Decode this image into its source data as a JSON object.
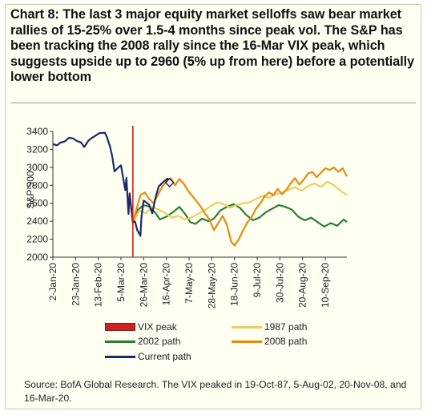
{
  "title": "Chart 8: The last 3 major equity market selloffs saw bear market rallies of 15-25% over 1.5-4 months since peak vol. The S&P has been tracking the 2008 rally since the 16-Mar VIX peak, which suggests upside up to 2960 (5% up from here) before a potentially lower bottom",
  "source": "Source: BofA Global Research. The VIX peaked in 19-Oct-87, 5-Aug-02, 20-Nov-08, and 16-Mar-20.",
  "chart_data": {
    "type": "line",
    "ylabel": "S&P 500",
    "ylim": [
      2000,
      3400
    ],
    "yticks": [
      2000,
      2200,
      2400,
      2600,
      2800,
      3000,
      3200,
      3400
    ],
    "xlim": [
      "2020-01-02",
      "2020-09-30"
    ],
    "xticks": [
      "2-Jan-20",
      "23-Jan-20",
      "13-Feb-20",
      "5-Mar-20",
      "26-Mar-20",
      "16-Apr-20",
      "7-May-20",
      "28-May-20",
      "18-Jun-20",
      "9-Jul-20",
      "30-Jul-20",
      "20-Aug-20",
      "10-Sep-20"
    ],
    "vix_peak": "2020-03-16",
    "marker": {
      "x": "2020-04-19",
      "y": 2830
    },
    "colors": {
      "vix_peak": "#cc2222",
      "path_1987": "#e8d060",
      "path_2002": "#2e7d32",
      "path_2008": "#e88a10",
      "current": "#1a2a6b"
    },
    "legend": [
      {
        "key": "vix_peak",
        "label": "VIX peak"
      },
      {
        "key": "path_1987",
        "label": "1987 path"
      },
      {
        "key": "path_2002",
        "label": "2002 path"
      },
      {
        "key": "path_2008",
        "label": "2008 path"
      },
      {
        "key": "current",
        "label": "Current path"
      }
    ],
    "series": [
      {
        "key": "current",
        "name": "Current path",
        "points": [
          [
            "2020-01-02",
            3258
          ],
          [
            "2020-01-06",
            3246
          ],
          [
            "2020-01-09",
            3275
          ],
          [
            "2020-01-13",
            3288
          ],
          [
            "2020-01-17",
            3330
          ],
          [
            "2020-01-21",
            3320
          ],
          [
            "2020-01-24",
            3295
          ],
          [
            "2020-01-28",
            3277
          ],
          [
            "2020-01-31",
            3226
          ],
          [
            "2020-02-04",
            3298
          ],
          [
            "2020-02-07",
            3327
          ],
          [
            "2020-02-11",
            3357
          ],
          [
            "2020-02-14",
            3380
          ],
          [
            "2020-02-19",
            3386
          ],
          [
            "2020-02-21",
            3338
          ],
          [
            "2020-02-24",
            3225
          ],
          [
            "2020-02-26",
            3116
          ],
          [
            "2020-02-28",
            2954
          ],
          [
            "2020-03-03",
            3003
          ],
          [
            "2020-03-05",
            3023
          ],
          [
            "2020-03-09",
            2746
          ],
          [
            "2020-03-10",
            2882
          ],
          [
            "2020-03-12",
            2480
          ],
          [
            "2020-03-13",
            2711
          ],
          [
            "2020-03-16",
            2386
          ],
          [
            "2020-03-18",
            2398
          ],
          [
            "2020-03-20",
            2305
          ],
          [
            "2020-03-23",
            2237
          ],
          [
            "2020-03-24",
            2447
          ],
          [
            "2020-03-26",
            2630
          ],
          [
            "2020-03-31",
            2585
          ],
          [
            "2020-04-03",
            2489
          ],
          [
            "2020-04-06",
            2664
          ],
          [
            "2020-04-09",
            2790
          ],
          [
            "2020-04-14",
            2846
          ],
          [
            "2020-04-17",
            2875
          ],
          [
            "2020-04-19",
            2830
          ]
        ]
      },
      {
        "key": "path_2002",
        "name": "2002 path",
        "points": [
          [
            "2020-03-16",
            2386
          ],
          [
            "2020-03-20",
            2520
          ],
          [
            "2020-03-26",
            2580
          ],
          [
            "2020-04-01",
            2560
          ],
          [
            "2020-04-06",
            2490
          ],
          [
            "2020-04-10",
            2420
          ],
          [
            "2020-04-16",
            2450
          ],
          [
            "2020-04-22",
            2500
          ],
          [
            "2020-04-28",
            2560
          ],
          [
            "2020-05-04",
            2470
          ],
          [
            "2020-05-08",
            2390
          ],
          [
            "2020-05-13",
            2370
          ],
          [
            "2020-05-19",
            2430
          ],
          [
            "2020-05-25",
            2400
          ],
          [
            "2020-05-30",
            2430
          ],
          [
            "2020-06-05",
            2520
          ],
          [
            "2020-06-11",
            2560
          ],
          [
            "2020-06-17",
            2590
          ],
          [
            "2020-06-23",
            2550
          ],
          [
            "2020-06-29",
            2470
          ],
          [
            "2020-07-05",
            2410
          ],
          [
            "2020-07-11",
            2440
          ],
          [
            "2020-07-17",
            2500
          ],
          [
            "2020-07-23",
            2540
          ],
          [
            "2020-07-29",
            2580
          ],
          [
            "2020-08-04",
            2560
          ],
          [
            "2020-08-10",
            2530
          ],
          [
            "2020-08-16",
            2450
          ],
          [
            "2020-08-22",
            2410
          ],
          [
            "2020-08-28",
            2440
          ],
          [
            "2020-09-03",
            2390
          ],
          [
            "2020-09-09",
            2340
          ],
          [
            "2020-09-15",
            2380
          ],
          [
            "2020-09-21",
            2350
          ],
          [
            "2020-09-27",
            2420
          ],
          [
            "2020-09-30",
            2390
          ]
        ]
      },
      {
        "key": "path_1987",
        "name": "1987 path",
        "points": [
          [
            "2020-03-16",
            2386
          ],
          [
            "2020-03-22",
            2520
          ],
          [
            "2020-03-28",
            2490
          ],
          [
            "2020-04-03",
            2560
          ],
          [
            "2020-04-09",
            2530
          ],
          [
            "2020-04-15",
            2490
          ],
          [
            "2020-04-21",
            2440
          ],
          [
            "2020-04-27",
            2460
          ],
          [
            "2020-05-03",
            2420
          ],
          [
            "2020-05-09",
            2440
          ],
          [
            "2020-05-15",
            2480
          ],
          [
            "2020-05-21",
            2520
          ],
          [
            "2020-05-27",
            2570
          ],
          [
            "2020-06-02",
            2610
          ],
          [
            "2020-06-08",
            2590
          ],
          [
            "2020-06-14",
            2550
          ],
          [
            "2020-06-20",
            2580
          ],
          [
            "2020-06-26",
            2600
          ],
          [
            "2020-07-02",
            2610
          ],
          [
            "2020-07-08",
            2650
          ],
          [
            "2020-07-14",
            2680
          ],
          [
            "2020-07-20",
            2660
          ],
          [
            "2020-07-26",
            2700
          ],
          [
            "2020-08-01",
            2720
          ],
          [
            "2020-08-07",
            2750
          ],
          [
            "2020-08-13",
            2780
          ],
          [
            "2020-08-19",
            2740
          ],
          [
            "2020-08-25",
            2790
          ],
          [
            "2020-08-31",
            2820
          ],
          [
            "2020-09-06",
            2780
          ],
          [
            "2020-09-12",
            2840
          ],
          [
            "2020-09-18",
            2800
          ],
          [
            "2020-09-24",
            2740
          ],
          [
            "2020-09-30",
            2690
          ]
        ]
      },
      {
        "key": "path_2008",
        "name": "2008 path",
        "points": [
          [
            "2020-03-16",
            2386
          ],
          [
            "2020-03-19",
            2520
          ],
          [
            "2020-03-23",
            2690
          ],
          [
            "2020-03-27",
            2720
          ],
          [
            "2020-03-31",
            2650
          ],
          [
            "2020-04-04",
            2600
          ],
          [
            "2020-04-08",
            2690
          ],
          [
            "2020-04-12",
            2780
          ],
          [
            "2020-04-16",
            2840
          ],
          [
            "2020-04-20",
            2880
          ],
          [
            "2020-04-24",
            2800
          ],
          [
            "2020-04-28",
            2870
          ],
          [
            "2020-05-02",
            2820
          ],
          [
            "2020-05-06",
            2740
          ],
          [
            "2020-05-10",
            2680
          ],
          [
            "2020-05-14",
            2620
          ],
          [
            "2020-05-18",
            2560
          ],
          [
            "2020-05-22",
            2480
          ],
          [
            "2020-05-26",
            2420
          ],
          [
            "2020-05-30",
            2300
          ],
          [
            "2020-06-03",
            2380
          ],
          [
            "2020-06-07",
            2460
          ],
          [
            "2020-06-11",
            2360
          ],
          [
            "2020-06-15",
            2170
          ],
          [
            "2020-06-18",
            2130
          ],
          [
            "2020-06-22",
            2200
          ],
          [
            "2020-06-26",
            2300
          ],
          [
            "2020-06-30",
            2390
          ],
          [
            "2020-07-04",
            2450
          ],
          [
            "2020-07-08",
            2540
          ],
          [
            "2020-07-12",
            2600
          ],
          [
            "2020-07-16",
            2680
          ],
          [
            "2020-07-20",
            2720
          ],
          [
            "2020-07-24",
            2690
          ],
          [
            "2020-07-28",
            2760
          ],
          [
            "2020-08-01",
            2700
          ],
          [
            "2020-08-05",
            2750
          ],
          [
            "2020-08-09",
            2820
          ],
          [
            "2020-08-13",
            2880
          ],
          [
            "2020-08-17",
            2810
          ],
          [
            "2020-08-21",
            2860
          ],
          [
            "2020-08-25",
            2930
          ],
          [
            "2020-08-29",
            2950
          ],
          [
            "2020-09-02",
            2890
          ],
          [
            "2020-09-06",
            2940
          ],
          [
            "2020-09-10",
            2990
          ],
          [
            "2020-09-14",
            2970
          ],
          [
            "2020-09-18",
            3000
          ],
          [
            "2020-09-22",
            2950
          ],
          [
            "2020-09-26",
            2990
          ],
          [
            "2020-09-30",
            2900
          ]
        ]
      }
    ]
  }
}
